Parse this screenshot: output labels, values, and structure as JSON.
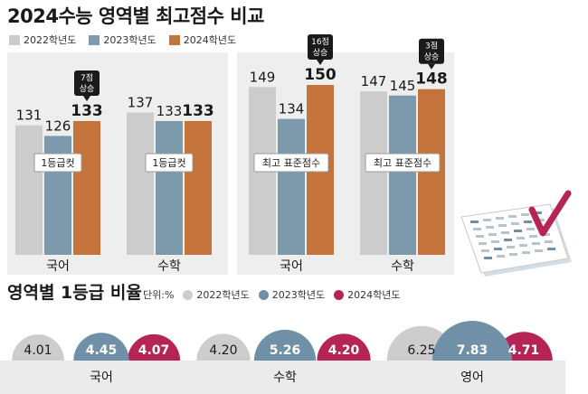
{
  "title": "2024수능 영역별 최고점수 비교",
  "legend": [
    "2022학년도",
    "2023학년도",
    "2024학년도"
  ],
  "colors": {
    "y2022": "#cccccc",
    "y2023": "#7c9aac",
    "y2024": "#c4743a",
    "r2022": "#cdcdcd",
    "r2023": "#6f90a6",
    "r2024": "#b52455"
  },
  "chart_data": [
    {
      "type": "bar",
      "categories": [
        "국어",
        "수학"
      ],
      "series": [
        {
          "name": "2022학년도",
          "values": [
            131,
            137
          ]
        },
        {
          "name": "2023학년도",
          "values": [
            126,
            133
          ]
        },
        {
          "name": "2024학년도",
          "values": [
            133,
            133
          ]
        }
      ],
      "inner_labels": [
        "1등급컷",
        "1등급컷"
      ],
      "annotations": [
        {
          "category": "국어",
          "text": [
            "7점",
            "상승"
          ]
        }
      ]
    },
    {
      "type": "bar",
      "categories": [
        "국어",
        "수학"
      ],
      "series": [
        {
          "name": "2022학년도",
          "values": [
            149,
            147
          ]
        },
        {
          "name": "2023학년도",
          "values": [
            134,
            145
          ]
        },
        {
          "name": "2024학년도",
          "values": [
            150,
            148
          ]
        }
      ],
      "inner_labels": [
        "최고 표준점수",
        "최고 표준점수"
      ],
      "annotations": [
        {
          "category": "국어",
          "text": [
            "16점",
            "상승"
          ]
        },
        {
          "category": "수학",
          "text": [
            "3점",
            "상승"
          ]
        }
      ]
    },
    {
      "type": "semicircle",
      "title": "영역별 1등급 비율",
      "unit": "단위:%",
      "categories": [
        "국어",
        "수학",
        "영어"
      ],
      "series": [
        {
          "name": "2022학년도",
          "values": [
            4.01,
            4.2,
            6.25
          ]
        },
        {
          "name": "2023학년도",
          "values": [
            4.45,
            5.26,
            7.83
          ]
        },
        {
          "name": "2024학년도",
          "values": [
            4.07,
            4.2,
            4.71
          ]
        }
      ]
    }
  ]
}
